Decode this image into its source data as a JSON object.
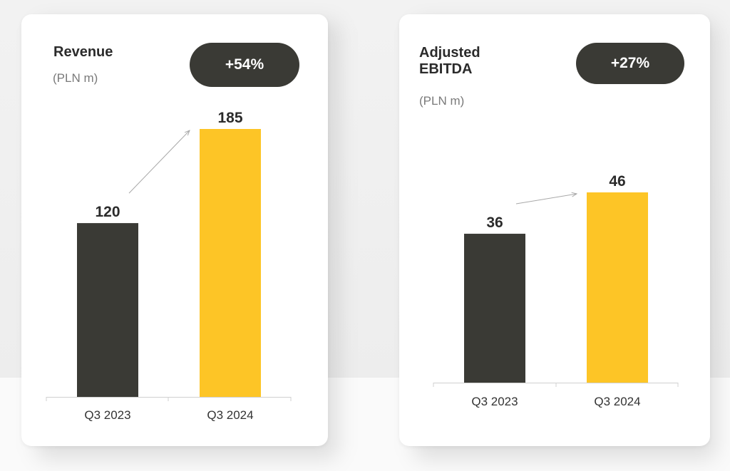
{
  "panels": [
    {
      "title": "Revenue",
      "unit": "(PLN m)",
      "badge": "+54%"
    },
    {
      "title": "Adjusted EBITDA",
      "unit": "(PLN m)",
      "badge": "+27%"
    }
  ],
  "colors": {
    "previous_period": "#3a3a35",
    "current_period": "#fdc526",
    "badge_background": "#3a3a35",
    "axis": "#d0d0d0",
    "arrow": "#a8a8a8"
  },
  "chart_data": [
    {
      "type": "bar",
      "title": "Revenue",
      "ylabel": "(PLN m)",
      "categories": [
        "Q3 2023",
        "Q3 2024"
      ],
      "values": [
        120,
        185
      ],
      "value_labels": [
        "120",
        "185"
      ],
      "change_label": "+54%",
      "ylim": [
        0,
        185
      ],
      "grid": false
    },
    {
      "type": "bar",
      "title": "Adjusted EBITDA",
      "ylabel": "(PLN m)",
      "categories": [
        "Q3 2023",
        "Q3 2024"
      ],
      "values": [
        36,
        46
      ],
      "value_labels": [
        "36",
        "46"
      ],
      "change_label": "+27%",
      "ylim": [
        0,
        46
      ],
      "grid": false
    }
  ]
}
